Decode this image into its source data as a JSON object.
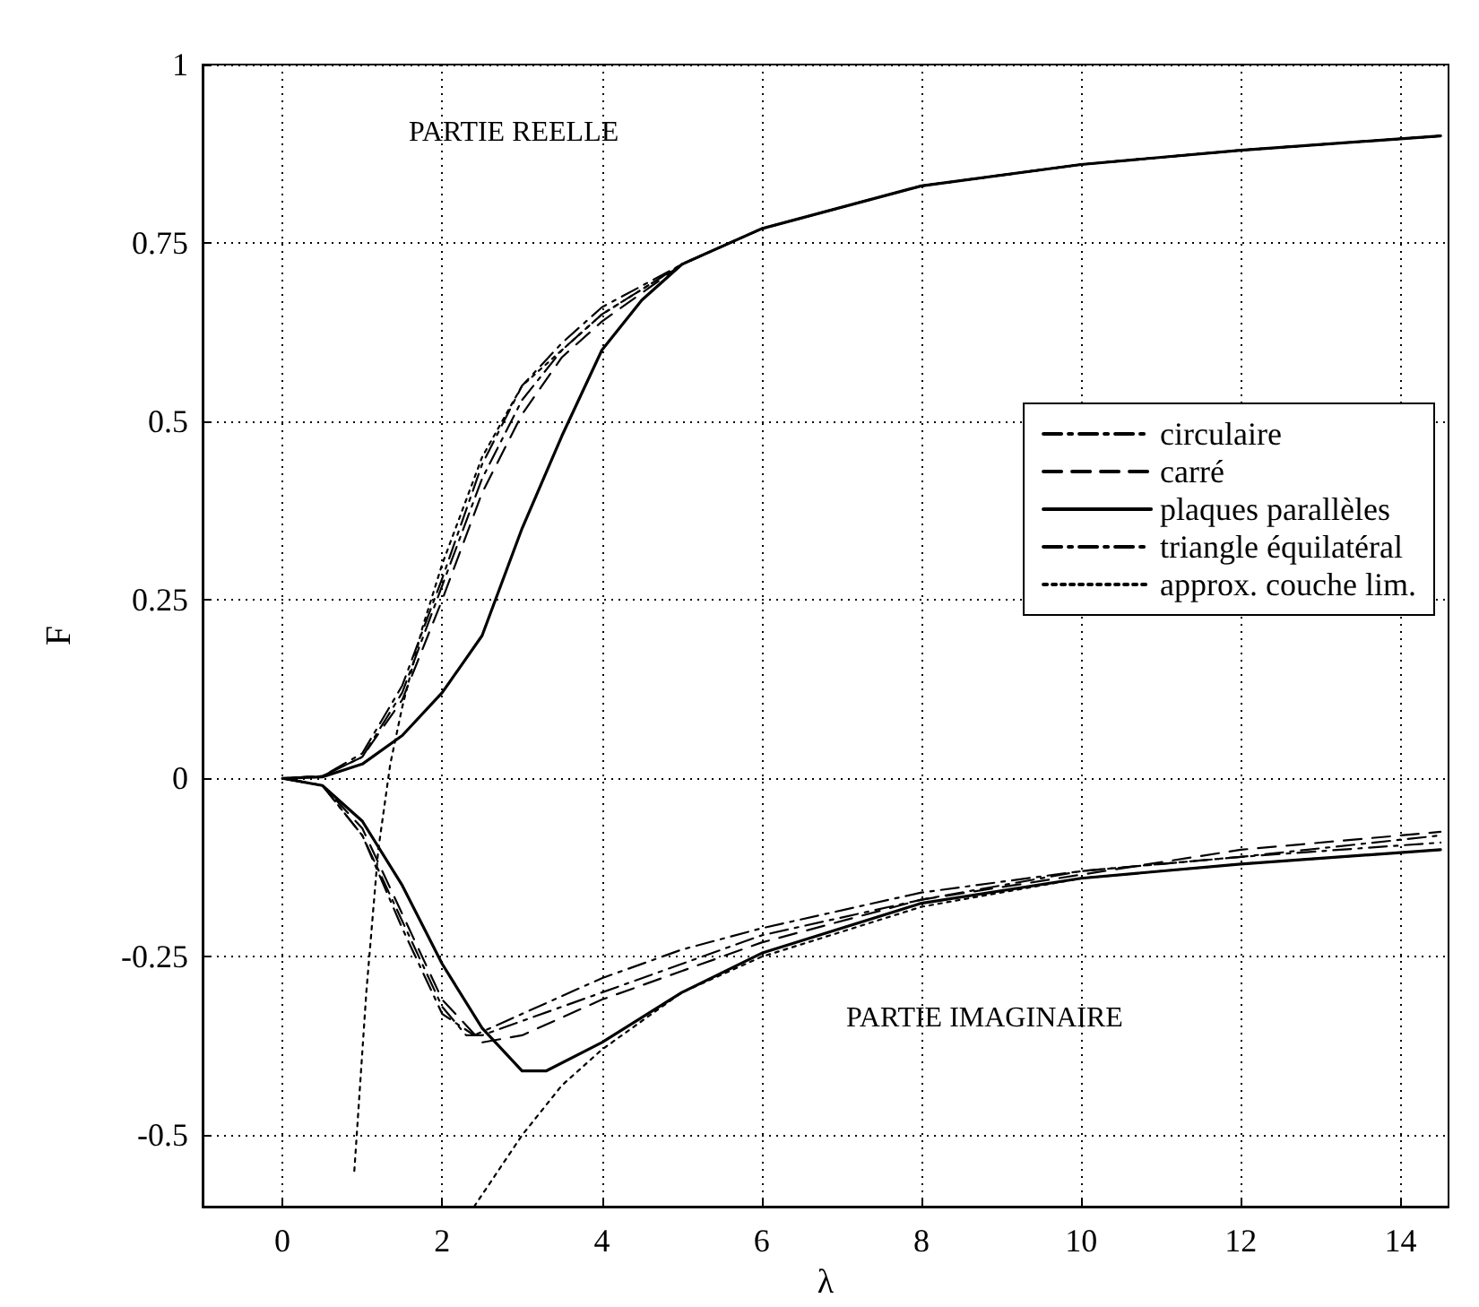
{
  "chart_data": {
    "type": "line",
    "xlabel": "λ",
    "ylabel": "F",
    "xlim": [
      -1,
      14.6
    ],
    "ylim": [
      -0.6,
      1
    ],
    "xticks": [
      0,
      2,
      4,
      6,
      8,
      10,
      12,
      14
    ],
    "yticks": [
      -0.5,
      -0.25,
      0,
      0.25,
      0.5,
      0.75,
      1
    ],
    "grid": true,
    "legend": "right",
    "marker": "none",
    "annotations": [
      "PARTIE REELLE",
      "PARTIE IMAGINAIRE"
    ],
    "series": [
      {
        "name": "circulaire",
        "color": "#000000",
        "line_style": "dashdot",
        "x": [
          14.5,
          12,
          10,
          8,
          6,
          5,
          4,
          3.5,
          3,
          2.5,
          2,
          1.5,
          1,
          0.5,
          0,
          0.5,
          1,
          1.5,
          2,
          2.3,
          2.5,
          3,
          4,
          5,
          6,
          8,
          10,
          12,
          14.5
        ],
        "values": [
          0.9,
          0.88,
          0.86,
          0.83,
          0.77,
          0.72,
          0.65,
          0.6,
          0.53,
          0.42,
          0.27,
          0.12,
          0.03,
          0.003,
          0,
          -0.01,
          -0.08,
          -0.2,
          -0.32,
          -0.36,
          -0.36,
          -0.34,
          -0.3,
          -0.26,
          -0.22,
          -0.17,
          -0.13,
          -0.11,
          -0.08
        ]
      },
      {
        "name": "carré",
        "color": "#000000",
        "line_style": "dashed",
        "x": [
          14.5,
          12,
          10,
          8,
          6,
          5,
          4,
          3.5,
          3,
          2.5,
          2,
          1.5,
          1,
          0.5,
          0,
          0.5,
          1,
          1.5,
          2,
          2.5,
          3,
          4,
          5,
          6,
          8,
          10,
          12,
          14.5
        ],
        "values": [
          0.9,
          0.88,
          0.86,
          0.83,
          0.77,
          0.72,
          0.64,
          0.59,
          0.51,
          0.4,
          0.25,
          0.11,
          0.03,
          0.003,
          0,
          -0.01,
          -0.07,
          -0.19,
          -0.31,
          -0.37,
          -0.36,
          -0.31,
          -0.27,
          -0.23,
          -0.17,
          -0.135,
          -0.1,
          -0.075
        ]
      },
      {
        "name": "plaques parallèles",
        "color": "#000000",
        "line_style": "solid",
        "x": [
          14.5,
          12,
          10,
          8,
          6,
          5,
          4.5,
          4,
          3.5,
          3,
          2.5,
          2,
          1.5,
          1,
          0.5,
          0,
          0.5,
          1,
          1.5,
          2,
          2.5,
          3,
          3.3,
          4,
          5,
          6,
          8,
          10,
          12,
          14.5
        ],
        "values": [
          0.9,
          0.88,
          0.86,
          0.83,
          0.77,
          0.72,
          0.67,
          0.6,
          0.48,
          0.35,
          0.2,
          0.12,
          0.06,
          0.02,
          0.002,
          0,
          -0.01,
          -0.06,
          -0.15,
          -0.26,
          -0.35,
          -0.41,
          -0.41,
          -0.37,
          -0.3,
          -0.245,
          -0.175,
          -0.14,
          -0.12,
          -0.1
        ]
      },
      {
        "name": "triangle équilatéral",
        "color": "#000000",
        "line_style": "dashdot",
        "x": [
          14.5,
          12,
          10,
          8,
          6,
          5,
          4,
          3.5,
          3,
          2.5,
          2,
          1.5,
          1,
          0.5,
          0,
          0.5,
          1,
          1.5,
          2,
          2.4,
          3,
          4,
          5,
          6,
          8,
          10,
          12,
          14.5
        ],
        "values": [
          0.9,
          0.88,
          0.86,
          0.83,
          0.77,
          0.72,
          0.66,
          0.61,
          0.55,
          0.44,
          0.28,
          0.13,
          0.035,
          0.003,
          0,
          -0.01,
          -0.08,
          -0.21,
          -0.33,
          -0.36,
          -0.33,
          -0.28,
          -0.24,
          -0.21,
          -0.16,
          -0.13,
          -0.11,
          -0.09
        ]
      },
      {
        "name": "approx. couche lim.",
        "color": "#000000",
        "line_style": "dotted",
        "x": [
          0.9,
          1.05,
          1.2,
          1.35,
          1.5,
          1.75,
          2,
          2.5,
          3,
          4,
          5,
          6,
          8,
          10,
          12,
          14.5,
          null,
          2.4,
          3,
          3.5,
          4,
          5,
          6,
          8,
          10,
          12,
          14.5
        ],
        "values": [
          -0.55,
          -0.3,
          -0.1,
          0.02,
          0.1,
          0.21,
          0.3,
          0.45,
          0.55,
          0.65,
          0.72,
          0.77,
          0.83,
          0.86,
          0.88,
          0.9,
          null,
          -0.6,
          -0.5,
          -0.43,
          -0.38,
          -0.3,
          -0.25,
          -0.18,
          -0.14,
          -0.12,
          -0.1
        ]
      }
    ]
  }
}
